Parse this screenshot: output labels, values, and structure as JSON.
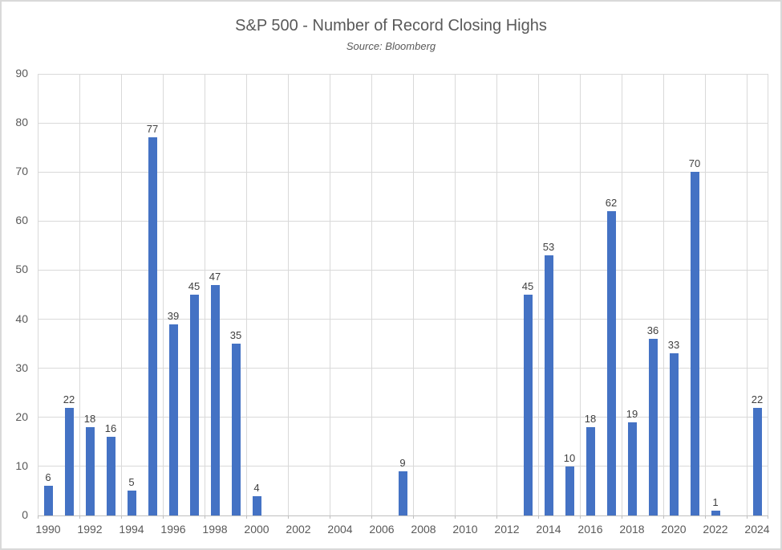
{
  "chart_data": {
    "type": "bar",
    "title": "S&P 500 - Number of Record Closing Highs",
    "subtitle": "Source: Bloomberg",
    "xlabel": "",
    "ylabel": "",
    "categories": [
      "1990",
      "1991",
      "1992",
      "1993",
      "1994",
      "1995",
      "1996",
      "1997",
      "1998",
      "1999",
      "2000",
      "2001",
      "2002",
      "2003",
      "2004",
      "2005",
      "2006",
      "2007",
      "2008",
      "2009",
      "2010",
      "2011",
      "2012",
      "2013",
      "2014",
      "2015",
      "2016",
      "2017",
      "2018",
      "2019",
      "2020",
      "2021",
      "2022",
      "2023",
      "2024"
    ],
    "values": [
      6,
      22,
      18,
      16,
      5,
      77,
      39,
      45,
      47,
      35,
      4,
      0,
      0,
      0,
      0,
      0,
      0,
      9,
      0,
      0,
      0,
      0,
      0,
      45,
      53,
      10,
      18,
      62,
      19,
      36,
      33,
      70,
      1,
      0,
      22
    ],
    "data_labels_shown_for_nonzero_only": true,
    "y_ticks": [
      0,
      10,
      20,
      30,
      40,
      50,
      60,
      70,
      80,
      90
    ],
    "ylim": [
      0,
      90
    ],
    "x_label_interval": 2,
    "x_tick_labels": [
      "1990",
      "1992",
      "1994",
      "1996",
      "1998",
      "2000",
      "2002",
      "2004",
      "2006",
      "2008",
      "2010",
      "2012",
      "2014",
      "2016",
      "2018",
      "2020",
      "2022",
      "2024"
    ],
    "grid": true,
    "legend": "none",
    "colors": {
      "bar": "#4472C4",
      "gridline": "#D9D9D9",
      "axis_line": "#BFBFBF",
      "tick": "#BFBFBF",
      "title": "#595959",
      "subtitle": "#595959",
      "axis_label": "#595959",
      "data_label": "#404040",
      "frame_border": "#D9D9D9",
      "background": "#FFFFFF"
    }
  }
}
